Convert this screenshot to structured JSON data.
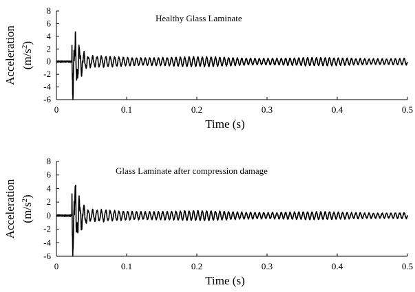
{
  "chart_data": [
    {
      "type": "line",
      "annotation": "Healthy Glass Laminate",
      "xlabel": "Time (s)",
      "ylabel_line1": "Acceleration",
      "ylabel_line2_base": "(m/s",
      "ylabel_line2_sup": "2",
      "ylabel_line2_end": ")",
      "xlim": [
        0,
        0.5
      ],
      "ylim": [
        -6,
        8
      ],
      "xticks": [
        0,
        0.1,
        0.2,
        0.3,
        0.4,
        0.5
      ],
      "xtick_labels": [
        "0",
        "0.1",
        "0.2",
        "0.3",
        "0.4",
        "0.5"
      ],
      "yticks": [
        -6,
        -4,
        -2,
        0,
        2,
        4,
        6,
        8
      ],
      "ytick_labels": [
        "-6",
        "-4",
        "-2",
        "0",
        "2",
        "4",
        "6",
        "8"
      ],
      "grid": false,
      "legend": "none",
      "color": "#000000",
      "signal": {
        "t_start": 0,
        "t_end": 0.5,
        "impact_time": 0.022,
        "peak_amplitude": 6.8,
        "sustained_amplitude": 1.0,
        "final_amplitude": 0.5,
        "dominant_freq_hz": 160
      }
    },
    {
      "type": "line",
      "annotation": "Glass Laminate after compression damage",
      "xlabel": "Time (s)",
      "ylabel_line1": "Acceleration",
      "ylabel_line2_base": "(m/s",
      "ylabel_line2_sup": "2",
      "ylabel_line2_end": ")",
      "xlim": [
        0,
        0.5
      ],
      "ylim": [
        -6,
        8
      ],
      "xticks": [
        0,
        0.1,
        0.2,
        0.3,
        0.4,
        0.5
      ],
      "xtick_labels": [
        "0",
        "0.1",
        "0.2",
        "0.3",
        "0.4",
        "0.5"
      ],
      "yticks": [
        -6,
        -4,
        -2,
        0,
        2,
        4,
        6,
        8
      ],
      "ytick_labels": [
        "-6",
        "-4",
        "-2",
        "0",
        "2",
        "4",
        "6",
        "8"
      ],
      "grid": false,
      "legend": "none",
      "color": "#000000",
      "signal": {
        "t_start": 0,
        "t_end": 0.5,
        "impact_time": 0.022,
        "peak_amplitude": 7.0,
        "sustained_amplitude": 1.0,
        "final_amplitude": 0.4,
        "dominant_freq_hz": 160
      }
    }
  ]
}
